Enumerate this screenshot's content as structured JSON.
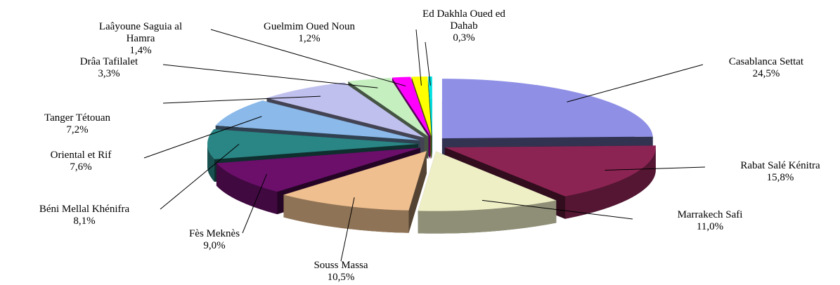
{
  "chart_data": {
    "type": "pie",
    "categories": [
      "Casablanca Settat",
      "Rabat Salé Kénitra",
      "Marrakech Safi",
      "Souss Massa",
      "Fès Meknès",
      "Béni Mellal Khénifra",
      "Oriental et Rif",
      "Tanger Tétouan",
      "Drâa Tafilalet",
      "Laâyoune Saguia al Hamra",
      "Guelmim Oued Noun",
      "Ed Dakhla Oued ed Dahab"
    ],
    "values": [
      24.5,
      15.8,
      11.0,
      10.5,
      9.0,
      8.1,
      7.6,
      7.2,
      3.3,
      1.4,
      1.2,
      0.3
    ],
    "value_labels": [
      "24,5%",
      "15,8%",
      "11,0%",
      "10,5%",
      "9,0%",
      "8,1%",
      "7,6%",
      "7,2%",
      "3,3%",
      "1,4%",
      "1,2%",
      "0,3%"
    ],
    "colors": [
      "#8f8fe6",
      "#8c2453",
      "#efefc6",
      "#efbf8f",
      "#6b0f6b",
      "#2a8585",
      "#8ab9ea",
      "#c0c0ee",
      "#c6efc0",
      "#ff00ff",
      "#ffff00",
      "#00e0e0"
    ]
  }
}
